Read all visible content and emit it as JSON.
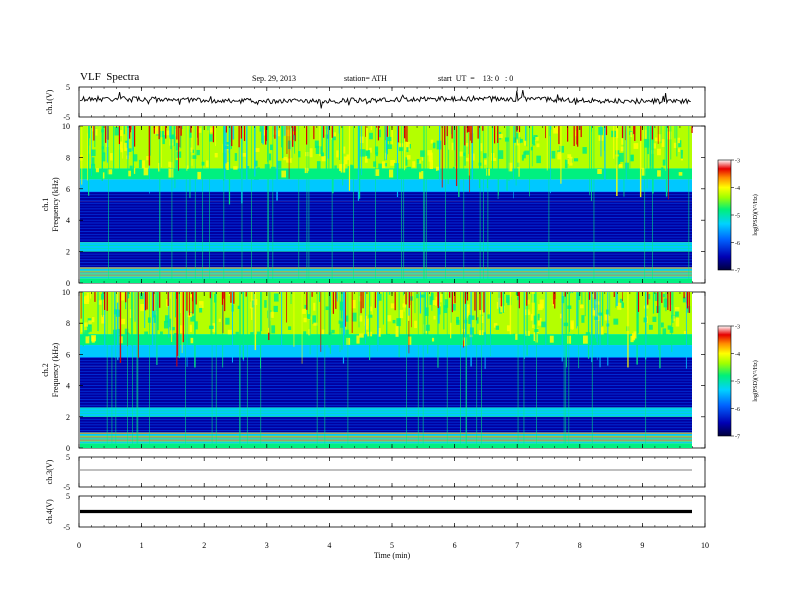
{
  "header": {
    "title": "VLF  Spectra",
    "date": "Sep. 29, 2013",
    "station": "station= ATH",
    "start": "start  UT  =    13: 0   : 0"
  },
  "chart_data": [
    {
      "type": "line",
      "panel": "ch1-waveform",
      "ylabel": "ch.1(V)",
      "ylim": [
        -5,
        5
      ],
      "yticks": [
        "5",
        "-5"
      ],
      "baseline": 0,
      "note_visible": "noisy waveform near 0 V"
    },
    {
      "type": "heatmap",
      "panel": "ch1-spectrogram",
      "ylabel": "ch.1\nFrequency  (kHz)",
      "ylim": [
        0,
        10
      ],
      "yticks": [
        "0",
        "2",
        "4",
        "6",
        "8",
        "10"
      ],
      "colorbar": {
        "label": "log(PSD)(V²/Hz)",
        "range": [
          -7,
          -3
        ],
        "ticks": [
          "-3",
          "-4",
          "-5",
          "-6",
          "-7"
        ]
      }
    },
    {
      "type": "heatmap",
      "panel": "ch2-spectrogram",
      "ylabel": "ch.2\nFrequency  (kHz)",
      "ylim": [
        0,
        10
      ],
      "yticks": [
        "0",
        "2",
        "4",
        "6",
        "8",
        "10"
      ],
      "colorbar": {
        "label": "log(PSD)(V²/Hz)",
        "range": [
          -7,
          -3
        ],
        "ticks": [
          "-3",
          "-4",
          "-5",
          "-6",
          "-7"
        ]
      }
    },
    {
      "type": "line",
      "panel": "ch3-waveform",
      "ylabel": "ch.3(V)",
      "ylim": [
        -5,
        5
      ],
      "yticks": [
        "5",
        "-5"
      ],
      "baseline": 0
    },
    {
      "type": "line",
      "panel": "ch4-waveform",
      "ylabel": "ch.4(V)",
      "ylim": [
        -5,
        5
      ],
      "yticks": [
        "5",
        "-5"
      ],
      "baseline": 0
    }
  ],
  "xaxis": {
    "label": "Time  (min)",
    "xlim": [
      0,
      10
    ],
    "ticks": [
      "0",
      "1",
      "2",
      "3",
      "4",
      "5",
      "6",
      "7",
      "8",
      "9",
      "10"
    ]
  },
  "colors": {
    "scale": [
      "#00003c",
      "#0000a0",
      "#0050ff",
      "#00c8ff",
      "#00f080",
      "#b4ff00",
      "#ffff00",
      "#ff8c00",
      "#dc0000",
      "#ffffff"
    ]
  }
}
